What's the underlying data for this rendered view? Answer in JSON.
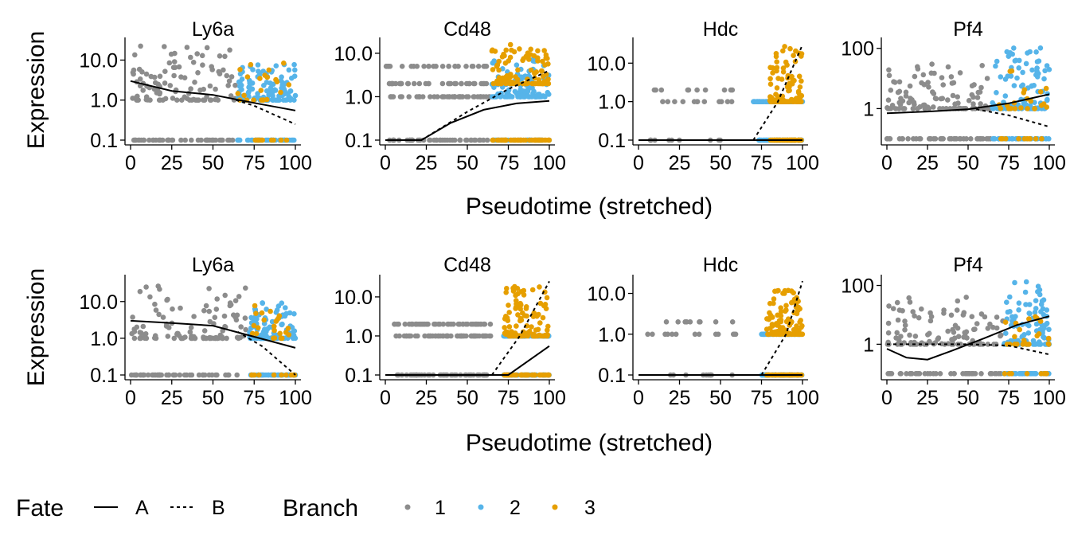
{
  "legend": {
    "fate_title": "Fate",
    "fate_items": [
      {
        "label": "A",
        "dash": "solid"
      },
      {
        "label": "B",
        "dash": "dotted"
      }
    ],
    "branch_title": "Branch",
    "branch_items": [
      {
        "label": "1",
        "color": "#8C8C8C"
      },
      {
        "label": "2",
        "color": "#56B4E9"
      },
      {
        "label": "3",
        "color": "#E69F00"
      }
    ]
  },
  "chart_data": [
    {
      "row": 1,
      "type": "scatter",
      "xlabel": "Pseudotime (stretched)",
      "ylabel": "Expression",
      "panels": [
        {
          "title": "Ly6a",
          "yscale": "log",
          "ylim": [
            0.1,
            28
          ],
          "yticks": [
            "0.1",
            "1.0",
            "10.0"
          ],
          "ytick_values": [
            0.1,
            1,
            10
          ],
          "xticks": [
            "0",
            "25",
            "50",
            "75",
            "100"
          ],
          "xlim": [
            0,
            100
          ],
          "baseline": 0.1,
          "pts_seed": 11,
          "branch1": {
            "x": [
              0,
              64
            ],
            "min": 1,
            "max": 25
          },
          "branch2": {
            "x": [
              65,
              100
            ],
            "min": 1,
            "max": 8
          },
          "branch3": {
            "x": [
              65,
              100
            ],
            "min": 1,
            "max": 10,
            "sparse": true
          },
          "fate_A": [
            [
              0,
              3.0
            ],
            [
              25,
              1.7
            ],
            [
              50,
              1.35
            ],
            [
              75,
              0.85
            ],
            [
              100,
              0.55
            ]
          ],
          "fate_B": [
            [
              64,
              1.0
            ],
            [
              75,
              0.72
            ],
            [
              100,
              0.25
            ]
          ]
        },
        {
          "title": "Cd48",
          "yscale": "log",
          "ylim": [
            0.1,
            18
          ],
          "yticks": [
            "0.1",
            "1.0",
            "10.0"
          ],
          "ytick_values": [
            0.1,
            1,
            10
          ],
          "xticks": [
            "0",
            "25",
            "50",
            "75",
            "100"
          ],
          "xlim": [
            0,
            100
          ],
          "baseline": 0.1,
          "pts_seed": 23,
          "branch1": {
            "x": [
              0,
              64
            ],
            "min": 1,
            "max": 5,
            "levels": [
              1,
              2,
              5
            ]
          },
          "branch2": {
            "x": [
              65,
              100
            ],
            "min": 1,
            "max": 8
          },
          "branch3": {
            "x": [
              65,
              100
            ],
            "min": 2,
            "max": 18
          },
          "fate_A": [
            [
              0,
              0.1
            ],
            [
              22,
              0.1
            ],
            [
              40,
              0.25
            ],
            [
              60,
              0.5
            ],
            [
              80,
              0.7
            ],
            [
              100,
              0.8
            ]
          ],
          "fate_B": [
            [
              22,
              0.1
            ],
            [
              50,
              0.45
            ],
            [
              75,
              1.5
            ],
            [
              100,
              4.0
            ]
          ]
        },
        {
          "title": "Hdc",
          "yscale": "log",
          "ylim": [
            0.1,
            35
          ],
          "yticks": [
            "0.1",
            "1.0",
            "10.0"
          ],
          "ytick_values": [
            0.1,
            1,
            10
          ],
          "xticks": [
            "0",
            "25",
            "50",
            "75",
            "100"
          ],
          "xlim": [
            0,
            100
          ],
          "baseline": 0.1,
          "pts_seed": 31,
          "branch1": {
            "x": [
              5,
              60
            ],
            "min": 1,
            "max": 2,
            "levels": [
              1,
              2
            ],
            "sparse": true
          },
          "branch2": {
            "x": [
              70,
              100
            ],
            "min": 1,
            "max": 1,
            "levels": [
              1
            ]
          },
          "branch3": {
            "x": [
              80,
              100
            ],
            "min": 1,
            "max": 30
          },
          "fate_A": [
            [
              0,
              0.1
            ],
            [
              70,
              0.1
            ],
            [
              100,
              0.1
            ]
          ],
          "fate_B": [
            [
              70,
              0.1
            ],
            [
              85,
              1.0
            ],
            [
              100,
              30
            ]
          ]
        },
        {
          "title": "Pf4",
          "yscale": "log",
          "ylim": [
            0.09,
            160
          ],
          "yticks": [
            "1",
            "100"
          ],
          "ytick_values": [
            1,
            100
          ],
          "xticks": [
            "0",
            "25",
            "50",
            "75",
            "100"
          ],
          "xlim": [
            0,
            100
          ],
          "baseline": 0.1,
          "pts_seed": 47,
          "branch1": {
            "x": [
              0,
              64
            ],
            "min": 1,
            "max": 30
          },
          "branch2": {
            "x": [
              65,
              100
            ],
            "min": 1,
            "max": 110
          },
          "branch3": {
            "x": [
              65,
              100
            ],
            "min": 1,
            "max": 20,
            "sparse": true
          },
          "fate_A": [
            [
              0,
              0.7
            ],
            [
              25,
              0.8
            ],
            [
              50,
              0.95
            ],
            [
              75,
              1.5
            ],
            [
              100,
              3.0
            ]
          ],
          "fate_B": [
            [
              55,
              0.95
            ],
            [
              75,
              0.6
            ],
            [
              100,
              0.25
            ]
          ]
        }
      ]
    },
    {
      "row": 2,
      "type": "scatter",
      "xlabel": "Pseudotime (stretched)",
      "ylabel": "Expression",
      "panels": [
        {
          "title": "Ly6a",
          "yscale": "log",
          "ylim": [
            0.1,
            40
          ],
          "yticks": [
            "0.1",
            "1.0",
            "10.0"
          ],
          "ytick_values": [
            0.1,
            1,
            10
          ],
          "xticks": [
            "0",
            "25",
            "50",
            "75",
            "100"
          ],
          "xlim": [
            0,
            100
          ],
          "baseline": 0.1,
          "pts_seed": 53,
          "branch1": {
            "x": [
              0,
              70
            ],
            "min": 1,
            "max": 35
          },
          "branch2": {
            "x": [
              72,
              100
            ],
            "min": 1,
            "max": 10
          },
          "branch3": {
            "x": [
              72,
              100
            ],
            "min": 1,
            "max": 8,
            "sparse": true
          },
          "fate_A": [
            [
              0,
              3.0
            ],
            [
              25,
              2.6
            ],
            [
              50,
              2.2
            ],
            [
              75,
              1.1
            ],
            [
              100,
              0.55
            ]
          ],
          "fate_B": [
            [
              65,
              1.5
            ],
            [
              80,
              0.6
            ],
            [
              100,
              0.1
            ]
          ]
        },
        {
          "title": "Cd48",
          "yscale": "log",
          "ylim": [
            0.1,
            28
          ],
          "yticks": [
            "0.1",
            "1.0",
            "10.0"
          ],
          "ytick_values": [
            0.1,
            1,
            10
          ],
          "xticks": [
            "0",
            "25",
            "50",
            "75",
            "100"
          ],
          "xlim": [
            0,
            100
          ],
          "baseline": 0.1,
          "pts_seed": 61,
          "branch1": {
            "x": [
              5,
              65
            ],
            "min": 1,
            "max": 2,
            "levels": [
              1,
              2
            ]
          },
          "branch2": {
            "x": [
              72,
              100
            ],
            "min": 1,
            "max": 2,
            "levels": [
              1
            ]
          },
          "branch3": {
            "x": [
              72,
              100
            ],
            "min": 1,
            "max": 20
          },
          "fate_A": [
            [
              0,
              0.1
            ],
            [
              75,
              0.1
            ],
            [
              100,
              0.55
            ]
          ],
          "fate_B": [
            [
              65,
              0.1
            ],
            [
              82,
              1.0
            ],
            [
              100,
              25
            ]
          ]
        },
        {
          "title": "Hdc",
          "yscale": "log",
          "ylim": [
            0.1,
            22
          ],
          "yticks": [
            "0.1",
            "1.0",
            "10.0"
          ],
          "ytick_values": [
            0.1,
            1,
            10
          ],
          "xticks": [
            "0",
            "25",
            "50",
            "75",
            "100"
          ],
          "xlim": [
            0,
            100
          ],
          "baseline": 0.1,
          "pts_seed": 71,
          "branch1": {
            "x": [
              5,
              60
            ],
            "min": 1,
            "max": 2,
            "levels": [
              1,
              2
            ],
            "sparse": true
          },
          "branch2": {
            "x": [
              75,
              100
            ],
            "min": 1,
            "max": 1,
            "levels": [
              1
            ]
          },
          "branch3": {
            "x": [
              78,
              100
            ],
            "min": 1,
            "max": 12
          },
          "fate_A": [
            [
              0,
              0.1
            ],
            [
              100,
              0.1
            ]
          ],
          "fate_B": [
            [
              75,
              0.1
            ],
            [
              90,
              1.0
            ],
            [
              100,
              20
            ]
          ]
        },
        {
          "title": "Pf4",
          "yscale": "log",
          "ylim": [
            0.09,
            160
          ],
          "yticks": [
            "1",
            "100"
          ],
          "ytick_values": [
            1,
            100
          ],
          "xticks": [
            "0",
            "25",
            "50",
            "75",
            "100"
          ],
          "xlim": [
            0,
            100
          ],
          "baseline": 0.1,
          "pts_seed": 83,
          "branch1": {
            "x": [
              0,
              72
            ],
            "min": 1,
            "max": 40
          },
          "branch2": {
            "x": [
              72,
              100
            ],
            "min": 1,
            "max": 140
          },
          "branch3": {
            "x": [
              72,
              100
            ],
            "min": 1,
            "max": 15,
            "sparse": true
          },
          "fate_A": [
            [
              0,
              0.7
            ],
            [
              12,
              0.35
            ],
            [
              25,
              0.3
            ],
            [
              40,
              0.6
            ],
            [
              60,
              1.6
            ],
            [
              80,
              4.5
            ],
            [
              100,
              9.0
            ]
          ],
          "fate_B": [
            [
              0,
              1.0
            ],
            [
              25,
              1.0
            ],
            [
              50,
              1.0
            ],
            [
              75,
              0.9
            ],
            [
              100,
              0.45
            ]
          ]
        }
      ]
    }
  ]
}
